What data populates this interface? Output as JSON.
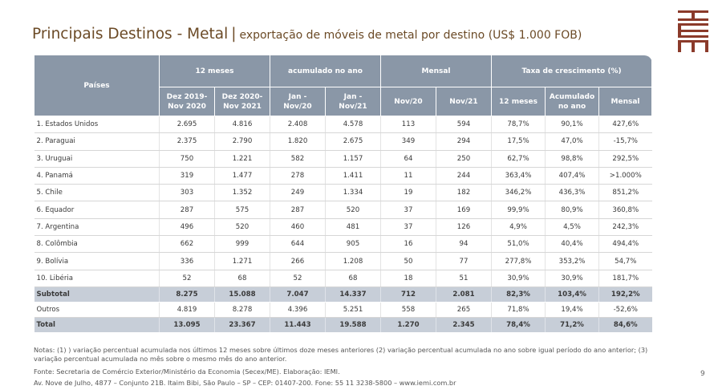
{
  "title": {
    "main": "Principais Destinos - Metal",
    "separator": "|",
    "subtitle": "exportação de móveis de metal por destino (US$ 1.000 FOB)"
  },
  "logo": {
    "text": "IEMI"
  },
  "table": {
    "col_paises": "Países",
    "group_headers": [
      "12 meses",
      "acumulado no ano",
      "Mensal",
      "Taxa de crescimento (%)"
    ],
    "sub_headers": [
      [
        "Dez 2019-",
        "Nov  2020"
      ],
      [
        "Dez 2020-",
        "Nov 2021"
      ],
      [
        "Jan -",
        "Nov/20"
      ],
      [
        "Jan -",
        "Nov/21"
      ],
      [
        "Nov/20"
      ],
      [
        "Nov/21"
      ],
      [
        "12 meses"
      ],
      [
        "Acumulado",
        "no ano"
      ],
      [
        "Mensal"
      ]
    ],
    "rows": [
      [
        "1. Estados Unidos",
        "2.695",
        "4.816",
        "2.408",
        "4.578",
        "113",
        "594",
        "78,7%",
        "90,1%",
        "427,6%"
      ],
      [
        "2. Paraguai",
        "2.375",
        "2.790",
        "1.820",
        "2.675",
        "349",
        "294",
        "17,5%",
        "47,0%",
        "-15,7%"
      ],
      [
        "3. Uruguai",
        "750",
        "1.221",
        "582",
        "1.157",
        "64",
        "250",
        "62,7%",
        "98,8%",
        "292,5%"
      ],
      [
        "4. Panamá",
        "319",
        "1.477",
        "278",
        "1.411",
        "11",
        "244",
        "363,4%",
        "407,4%",
        ">1.000%"
      ],
      [
        "5. Chile",
        "303",
        "1.352",
        "249",
        "1.334",
        "19",
        "182",
        "346,2%",
        "436,3%",
        "851,2%"
      ],
      [
        "6. Equador",
        "287",
        "575",
        "287",
        "520",
        "37",
        "169",
        "99,9%",
        "80,9%",
        "360,8%"
      ],
      [
        "7. Argentina",
        "496",
        "520",
        "460",
        "481",
        "37",
        "126",
        "4,9%",
        "4,5%",
        "242,3%"
      ],
      [
        "8. Colômbia",
        "662",
        "999",
        "644",
        "905",
        "16",
        "94",
        "51,0%",
        "40,4%",
        "494,4%"
      ],
      [
        "9. Bolívia",
        "336",
        "1.271",
        "266",
        "1.208",
        "50",
        "77",
        "277,8%",
        "353,2%",
        "54,7%"
      ],
      [
        "10. Libéria",
        "52",
        "68",
        "52",
        "68",
        "18",
        "51",
        "30,9%",
        "30,9%",
        "181,7%"
      ]
    ],
    "subtotal": [
      "Subtotal",
      "8.275",
      "15.088",
      "7.047",
      "14.337",
      "712",
      "2.081",
      "82,3%",
      "103,4%",
      "192,2%"
    ],
    "outros": [
      "Outros",
      "4.819",
      "8.278",
      "4.396",
      "5.251",
      "558",
      "265",
      "71,8%",
      "19,4%",
      "-52,6%"
    ],
    "total": [
      "Total",
      "13.095",
      "23.367",
      "11.443",
      "19.588",
      "1.270",
      "2.345",
      "78,4%",
      "71,2%",
      "84,6%"
    ]
  },
  "notes": "Notas: (1) ) variação percentual acumulada nos últimos 12 meses sobre últimos doze meses anteriores (2) variação percentual acumulada no ano sobre igual período do ano anterior; (3) variação percentual acumulada no mês sobre o mesmo mês do ano anterior.",
  "source": "Fonte: Secretaria de Comércio Exterior/Ministério da Economia (Secex/ME). Elaboração: IEMI.",
  "address": "Av. Nove de Julho, 4877 – Conjunto 21B. Itaim Bibi, São Paulo – SP – CEP: 01407-200. Fone: 55 11 3238-5800 – www.iemi.com.br",
  "page_number": "9",
  "colors": {
    "header_bg": "#8a97a7",
    "summary_bg": "#c7ced8",
    "title": "#6b4a26",
    "logo": "#8b3a2a"
  }
}
